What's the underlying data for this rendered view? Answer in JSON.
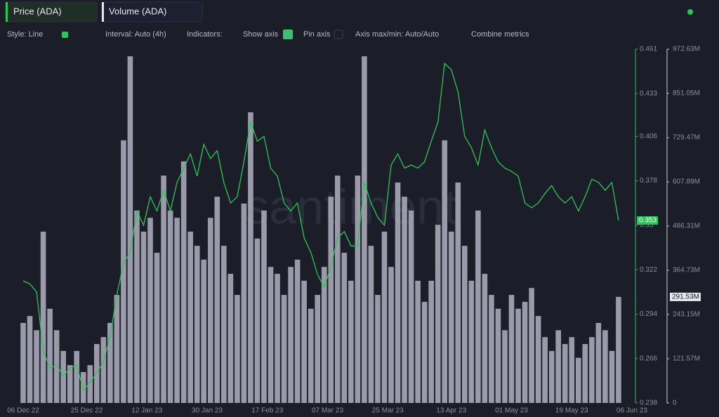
{
  "toolbar": {
    "style": "Style: Line",
    "interval": "Interval: Auto (4h)",
    "indicators": "Indicators:",
    "show_axis": "Show axis",
    "pin_axis": "Pin axis",
    "axis_range": "Axis max/min: Auto/Auto",
    "combine": "Combine metrics"
  },
  "chart_data": {
    "type": "line-bar",
    "watermark": "santiment",
    "x": [
      "06 Dec 22",
      "08 Dec 22",
      "10 Dec 22",
      "12 Dec 22",
      "14 Dec 22",
      "16 Dec 22",
      "18 Dec 22",
      "20 Dec 22",
      "22 Dec 22",
      "24 Dec 22",
      "26 Dec 22",
      "28 Dec 22",
      "30 Dec 22",
      "01 Jan 23",
      "03 Jan 23",
      "05 Jan 23",
      "07 Jan 23",
      "09 Jan 23",
      "11 Jan 23",
      "13 Jan 23",
      "15 Jan 23",
      "17 Jan 23",
      "19 Jan 23",
      "21 Jan 23",
      "23 Jan 23",
      "25 Jan 23",
      "27 Jan 23",
      "29 Jan 23",
      "31 Jan 23",
      "02 Feb 23",
      "04 Feb 23",
      "06 Feb 23",
      "08 Feb 23",
      "10 Feb 23",
      "12 Feb 23",
      "14 Feb 23",
      "16 Feb 23",
      "18 Feb 23",
      "20 Feb 23",
      "22 Feb 23",
      "24 Feb 23",
      "26 Feb 23",
      "28 Feb 23",
      "02 Mar 23",
      "04 Mar 23",
      "06 Mar 23",
      "08 Mar 23",
      "10 Mar 23",
      "12 Mar 23",
      "14 Mar 23",
      "16 Mar 23",
      "18 Mar 23",
      "20 Mar 23",
      "22 Mar 23",
      "24 Mar 23",
      "26 Mar 23",
      "28 Mar 23",
      "30 Mar 23",
      "01 Apr 23",
      "03 Apr 23",
      "05 Apr 23",
      "07 Apr 23",
      "09 Apr 23",
      "11 Apr 23",
      "13 Apr 23",
      "15 Apr 23",
      "17 Apr 23",
      "19 Apr 23",
      "21 Apr 23",
      "23 Apr 23",
      "25 Apr 23",
      "27 Apr 23",
      "29 Apr 23",
      "01 May 23",
      "03 May 23",
      "05 May 23",
      "07 May 23",
      "09 May 23",
      "11 May 23",
      "13 May 23",
      "15 May 23",
      "17 May 23",
      "19 May 23",
      "21 May 23",
      "23 May 23",
      "25 May 23",
      "27 May 23",
      "29 May 23",
      "31 May 23",
      "02 Jun 23"
    ],
    "xlim": [
      "06 Dec 22",
      "06 Jun 23"
    ],
    "xticks": [
      "06 Dec 22",
      "25 Dec 22",
      "12 Jan 23",
      "30 Jan 23",
      "17 Feb 23",
      "07 Mar 23",
      "25 Mar 23",
      "13 Apr 23",
      "01 May 23",
      "19 May 23",
      "06 Jun 23"
    ],
    "ylim": [
      0.238,
      0.461
    ],
    "yticks": [
      0.238,
      0.266,
      0.294,
      0.322,
      0.35,
      0.378,
      0.406,
      0.433,
      0.461
    ],
    "y2lim": [
      0,
      972.63
    ],
    "y2ticks": [
      0,
      {
        "value": 121.57,
        "label": "121.57M"
      },
      {
        "value": 243.15,
        "label": "243.15M"
      },
      {
        "value": 364.73,
        "label": "364.73M"
      },
      {
        "value": 486.31,
        "label": "486.31M"
      },
      {
        "value": 607.89,
        "label": "607.89M"
      },
      {
        "value": 729.47,
        "label": "729.47M"
      },
      {
        "value": 851.05,
        "label": "851.05M"
      },
      {
        "value": 972.63,
        "label": "972.63M"
      }
    ],
    "series": [
      {
        "name": "Price (ADA)",
        "color": "#26c953",
        "type": "line",
        "last_value": 0.353,
        "values": [
          0.315,
          0.313,
          0.308,
          0.271,
          0.26,
          0.262,
          0.255,
          0.26,
          0.262,
          0.246,
          0.251,
          0.257,
          0.264,
          0.28,
          0.306,
          0.326,
          0.333,
          0.359,
          0.35,
          0.368,
          0.359,
          0.372,
          0.359,
          0.377,
          0.386,
          0.395,
          0.381,
          0.401,
          0.392,
          0.397,
          0.377,
          0.364,
          0.368,
          0.39,
          0.415,
          0.403,
          0.406,
          0.386,
          0.381,
          0.364,
          0.359,
          0.364,
          0.342,
          0.333,
          0.319,
          0.311,
          0.324,
          0.342,
          0.346,
          0.337,
          0.337,
          0.377,
          0.364,
          0.355,
          0.35,
          0.388,
          0.395,
          0.386,
          0.388,
          0.386,
          0.39,
          0.403,
          0.415,
          0.452,
          0.448,
          0.434,
          0.406,
          0.399,
          0.388,
          0.41,
          0.399,
          0.39,
          0.386,
          0.384,
          0.381,
          0.364,
          0.361,
          0.364,
          0.37,
          0.375,
          0.368,
          0.364,
          0.368,
          0.359,
          0.368,
          0.379,
          0.377,
          0.372,
          0.377,
          0.353
        ]
      },
      {
        "name": "Volume (ADA)",
        "color": "#a8a9b8",
        "type": "bar",
        "axis": "y2",
        "last_value": {
          "value": 291.53,
          "label": "291.53M"
        },
        "values": [
          220,
          239,
          200,
          471,
          259,
          200,
          143,
          104,
          143,
          85,
          104,
          162,
          181,
          220,
          297,
          722,
          953,
          529,
          471,
          509,
          413,
          625,
          529,
          509,
          664,
          471,
          432,
          394,
          509,
          567,
          432,
          355,
          297,
          548,
          799,
          452,
          529,
          374,
          355,
          297,
          374,
          394,
          336,
          259,
          297,
          374,
          567,
          625,
          413,
          336,
          625,
          953,
          432,
          297,
          471,
          374,
          606,
          567,
          529,
          336,
          278,
          336,
          490,
          722,
          471,
          606,
          432,
          336,
          529,
          355,
          297,
          259,
          200,
          297,
          259,
          278,
          316,
          239,
          181,
          143,
          200,
          162,
          181,
          124,
          162,
          181,
          220,
          200,
          143,
          291.53
        ]
      }
    ]
  }
}
